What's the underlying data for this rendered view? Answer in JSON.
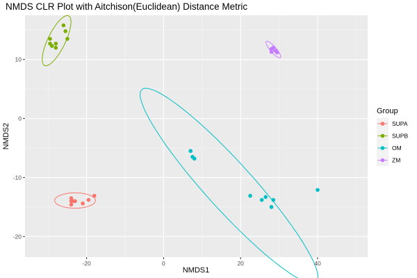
{
  "chart_data": {
    "type": "scatter",
    "title": "NMDS CLR Plot with Aitchison(Euclidean) Distance Metric",
    "xlabel": "NMDS1",
    "ylabel": "NMDS2",
    "xlim": [
      -36,
      53
    ],
    "ylim": [
      -23.5,
      17.5
    ],
    "x_ticks": [
      -20,
      0,
      20,
      40
    ],
    "y_ticks": [
      10,
      0,
      -10,
      -20
    ],
    "grid": true,
    "legend": {
      "title": "Group",
      "position": "right"
    },
    "series": [
      {
        "name": "SUPA",
        "color": "#F8766D",
        "points": [
          [
            -24.0,
            -13.5
          ],
          [
            -23.5,
            -14.0
          ],
          [
            -24.0,
            -14.0
          ],
          [
            -23.0,
            -14.0
          ],
          [
            -24.0,
            -14.6
          ],
          [
            -21.0,
            -14.4
          ],
          [
            -19.5,
            -13.8
          ],
          [
            -18.0,
            -13.1
          ]
        ],
        "ellipse": {
          "cx": -23.0,
          "cy": -13.9,
          "rx": 5.3,
          "ry": 1.3,
          "angle": 0
        }
      },
      {
        "name": "SUPB",
        "color": "#7CAE00",
        "points": [
          [
            -26.0,
            15.8
          ],
          [
            -25.5,
            14.8
          ],
          [
            -25.0,
            13.5
          ],
          [
            -29.5,
            13.5
          ],
          [
            -29.5,
            12.7
          ],
          [
            -29.0,
            12.3
          ],
          [
            -28.0,
            12.7
          ],
          [
            -28.0,
            12.0
          ]
        ],
        "ellipse": {
          "cx": -27.8,
          "cy": 13.2,
          "rx": 5.3,
          "ry": 2.0,
          "angle": 50
        }
      },
      {
        "name": "OM",
        "color": "#00BFC4",
        "points": [
          [
            7.0,
            -5.5
          ],
          [
            7.5,
            -6.5
          ],
          [
            8.0,
            -6.8
          ],
          [
            40.0,
            -12.1
          ],
          [
            22.5,
            -13.1
          ],
          [
            26.5,
            -13.3
          ],
          [
            25.5,
            -13.8
          ],
          [
            28.5,
            -13.8
          ],
          [
            28.0,
            -15.0
          ]
        ],
        "ellipse": {
          "cx": 17.0,
          "cy": -11.4,
          "rx": 28.0,
          "ry": 4.8,
          "angle": -35
        }
      },
      {
        "name": "ZM",
        "color": "#C77CFF",
        "points": [
          [
            28.5,
            12.0
          ],
          [
            28.0,
            11.8
          ],
          [
            29.0,
            11.5
          ],
          [
            28.0,
            11.3
          ],
          [
            29.5,
            11.2
          ]
        ],
        "ellipse": {
          "cx": 28.5,
          "cy": 11.7,
          "rx": 2.3,
          "ry": 0.6,
          "angle": -35
        }
      }
    ]
  }
}
